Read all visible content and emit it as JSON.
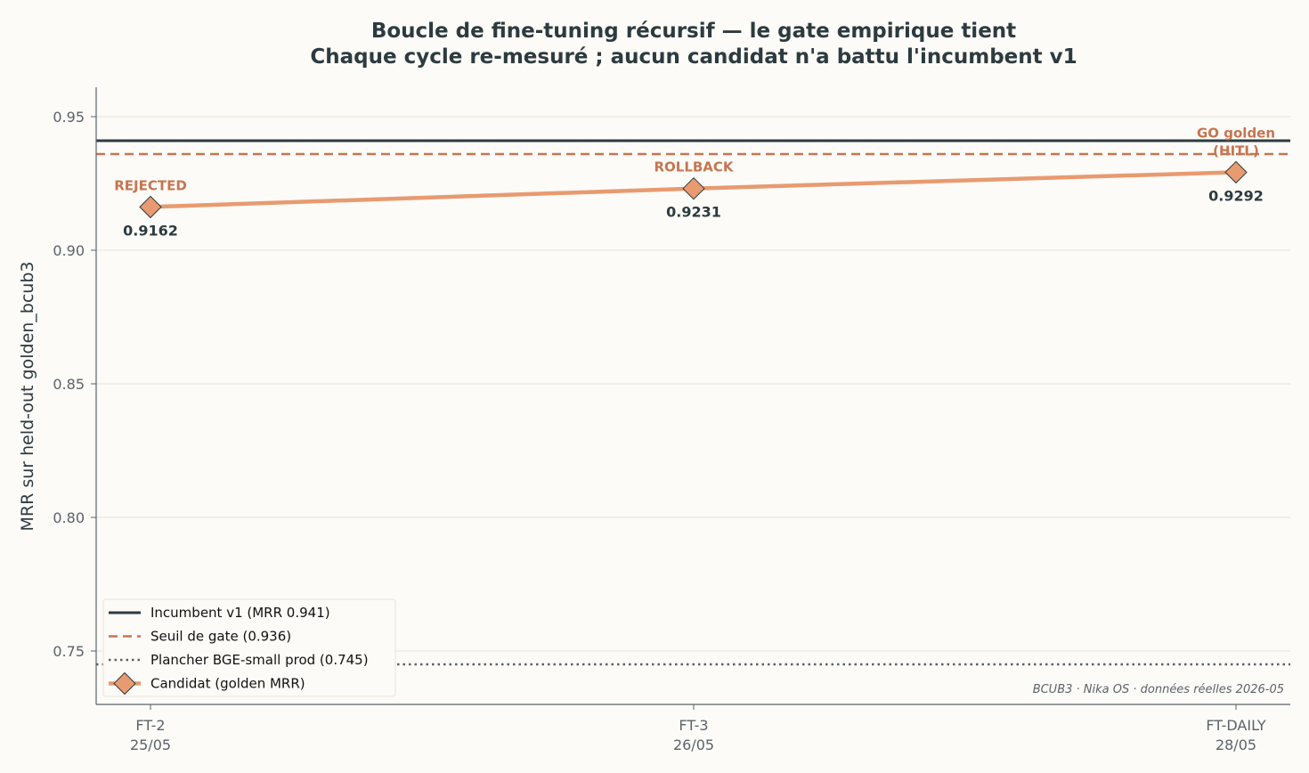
{
  "chart_data": {
    "type": "line",
    "title": "Boucle de fine-tuning récursif — le gate empirique tient",
    "subtitle": "Chaque cycle re-mesuré ; aucun candidat n'a battu l'incumbent v1",
    "xlabel": "",
    "ylabel": "MRR sur held-out golden_bcub3",
    "ylim": [
      0.73,
      0.961
    ],
    "yticks": [
      "0.75",
      "0.80",
      "0.85",
      "0.90",
      "0.95"
    ],
    "ytick_values": [
      0.75,
      0.8,
      0.85,
      0.9,
      0.95
    ],
    "grid": "horizontal",
    "categories": [
      {
        "name": "FT-2",
        "date": "25/05"
      },
      {
        "name": "FT-3",
        "date": "26/05"
      },
      {
        "name": "FT-DAILY",
        "date": "28/05"
      }
    ],
    "series": [
      {
        "name": "Candidat (golden MRR)",
        "values": [
          0.9162,
          0.9231,
          0.9292
        ],
        "value_labels": [
          "0.9162",
          "0.9231",
          "0.9292"
        ],
        "status_labels": [
          "REJECTED",
          "ROLLBACK",
          "GO golden\n(HITL)"
        ],
        "color": "#e89a70",
        "marker": "diamond"
      }
    ],
    "reference_lines": [
      {
        "name": "Incumbent v1 (MRR 0.941)",
        "value": 0.941,
        "style": "solid",
        "color": "#2d3b3f"
      },
      {
        "name": "Seuil de gate (0.936)",
        "value": 0.936,
        "style": "dashed",
        "color": "#c47650"
      },
      {
        "name": "Plancher BGE-small prod (0.745)",
        "value": 0.745,
        "style": "dotted",
        "color": "#5b6369"
      }
    ],
    "legend_position": "bottom-left",
    "footnote": "BCUB3 · Nika OS · données réelles 2026-05"
  }
}
